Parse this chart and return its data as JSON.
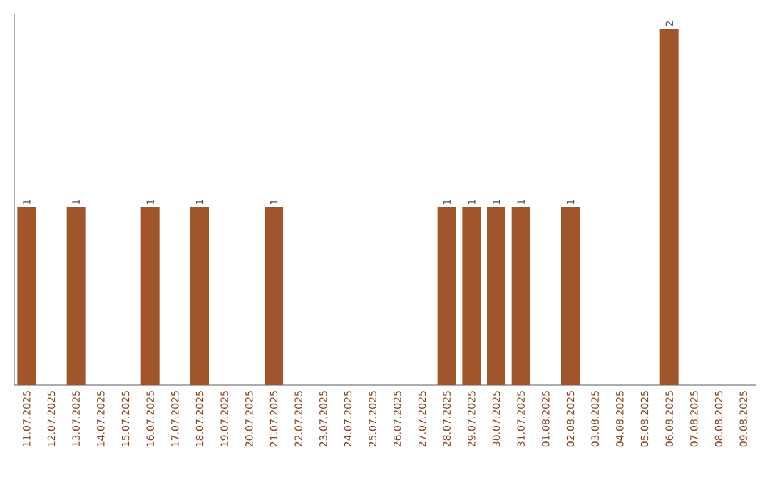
{
  "chart_data": {
    "type": "bar",
    "categories": [
      "11.07.2025",
      "12.07.2025",
      "13.07.2025",
      "14.07.2025",
      "15.07.2025",
      "16.07.2025",
      "17.07.2025",
      "18.07.2025",
      "19.07.2025",
      "20.07.2025",
      "21.07.2025",
      "22.07.2025",
      "23.07.2025",
      "24.07.2025",
      "25.07.2025",
      "26.07.2025",
      "27.07.2025",
      "28.07.2025",
      "29.07.2025",
      "30.07.2025",
      "31.07.2025",
      "01.08.2025",
      "02.08.2025",
      "03.08.2025",
      "04.08.2025",
      "05.08.2025",
      "06.08.2025",
      "07.08.2025",
      "08.08.2025",
      "09.08.2025"
    ],
    "values": [
      1,
      0,
      1,
      0,
      0,
      1,
      0,
      1,
      0,
      0,
      1,
      0,
      0,
      0,
      0,
      0,
      0,
      1,
      1,
      1,
      1,
      0,
      1,
      0,
      0,
      0,
      2,
      0,
      0,
      0
    ],
    "value_labels": [
      "1",
      null,
      "1",
      null,
      null,
      "1",
      null,
      "1",
      null,
      null,
      "1",
      null,
      null,
      null,
      null,
      null,
      null,
      "1",
      "1",
      "1",
      "1",
      null,
      "1",
      null,
      null,
      null,
      "2",
      null,
      null,
      null
    ],
    "color": "#a0552a",
    "grid": false
  }
}
